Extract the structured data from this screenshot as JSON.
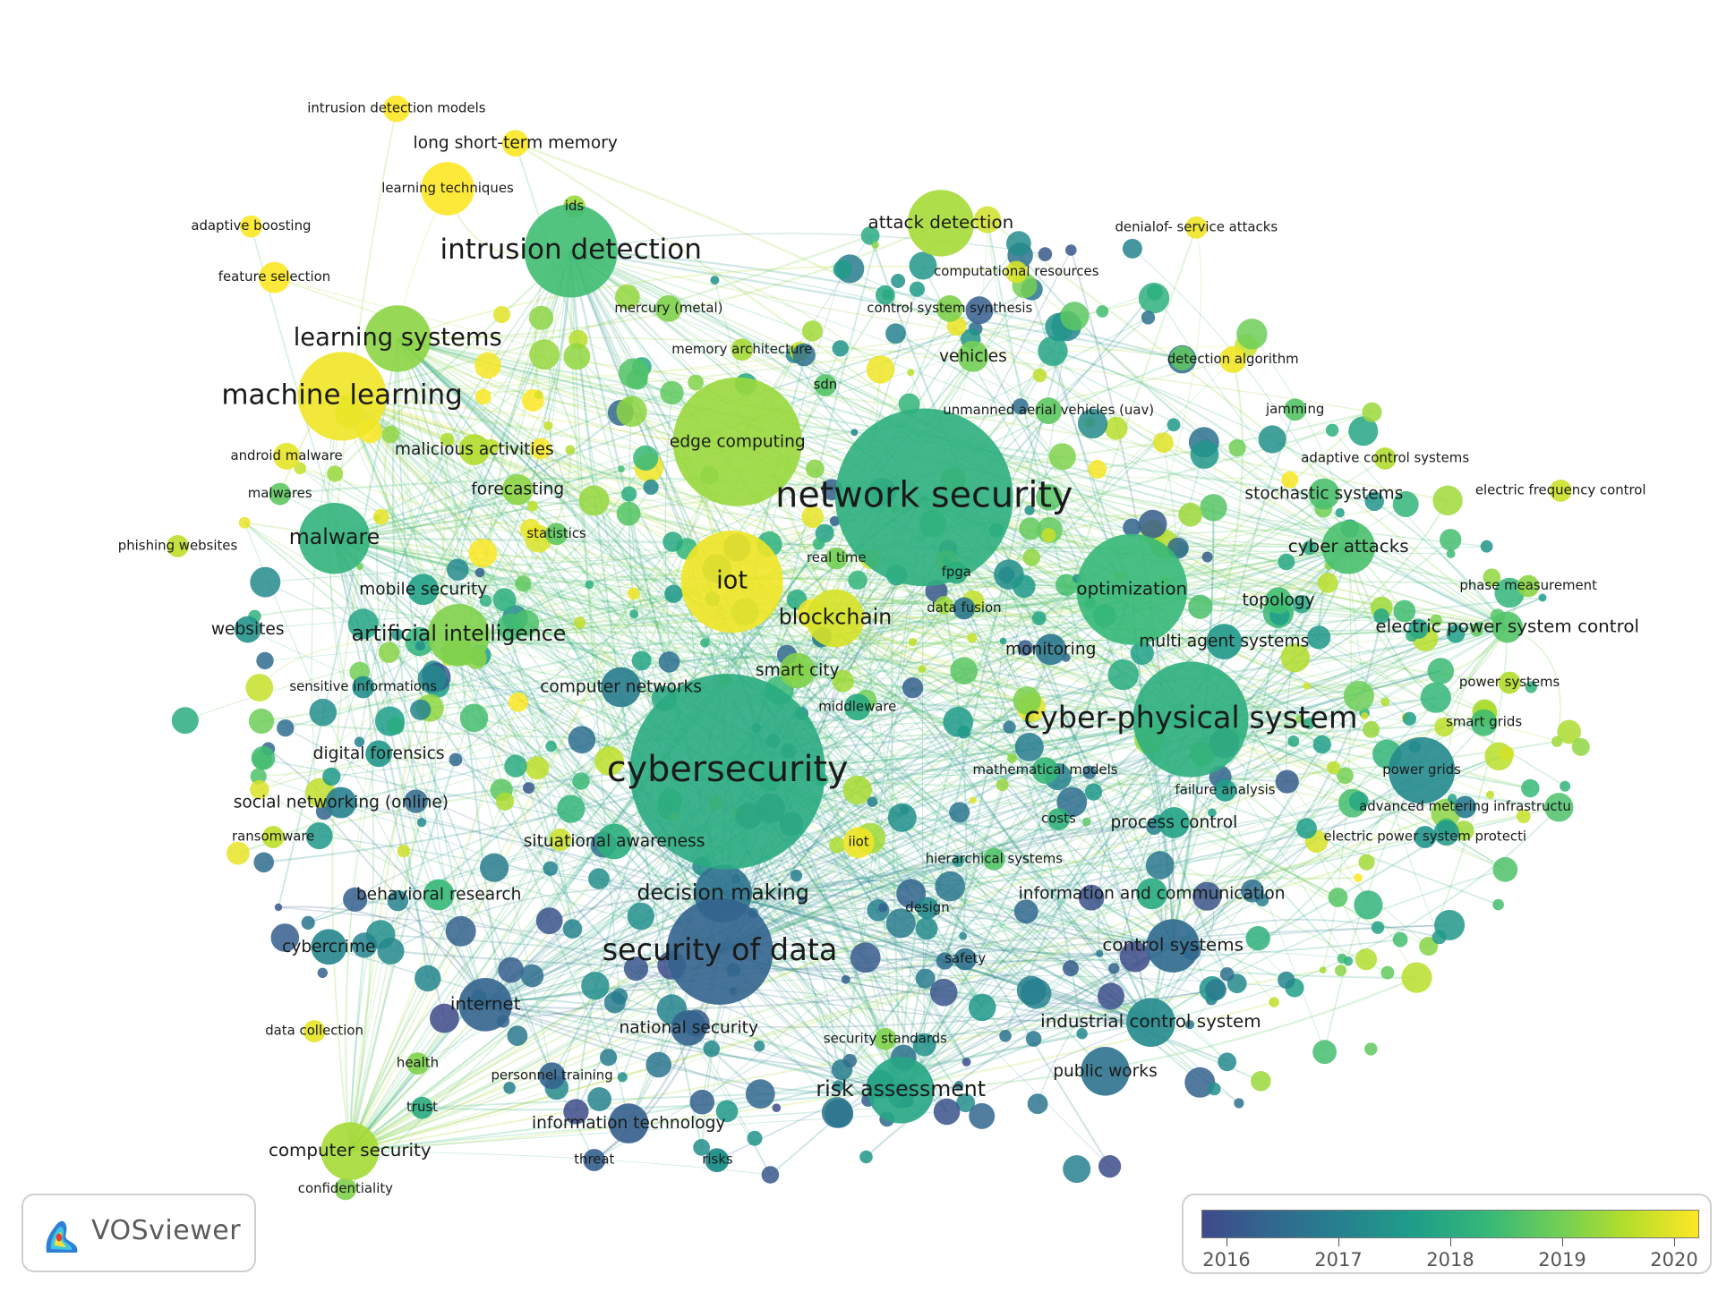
{
  "brand": {
    "name": "VOSviewer"
  },
  "overlay_legend": {
    "colors": [
      "#3e4a8a",
      "#31688e",
      "#26828e",
      "#1f9e89",
      "#35b779",
      "#6ece58",
      "#b5de2b",
      "#fde725"
    ],
    "years": [
      "2016",
      "2017",
      "2018",
      "2019",
      "2020"
    ]
  },
  "terms": [
    {
      "label": "network security",
      "year": 2018.1,
      "weight": 10
    },
    {
      "label": "cybersecurity",
      "year": 2018.0,
      "weight": 10
    },
    {
      "label": "cyber-physical system",
      "year": 2018.1,
      "weight": 8
    },
    {
      "label": "security of data",
      "year": 2016.5,
      "weight": 8
    },
    {
      "label": "intrusion detection",
      "year": 2018.4,
      "weight": 7
    },
    {
      "label": "machine learning",
      "year": 2019.9,
      "weight": 7
    },
    {
      "label": "learning systems",
      "year": 2019.1,
      "weight": 6
    },
    {
      "label": "iot",
      "year": 2019.9,
      "weight": 6
    },
    {
      "label": "artificial intelligence",
      "year": 2019.0,
      "weight": 5
    },
    {
      "label": "malware",
      "year": 2018.2,
      "weight": 5
    },
    {
      "label": "blockchain",
      "year": 2019.7,
      "weight": 5
    },
    {
      "label": "decision making",
      "year": 2016.8,
      "weight": 5
    },
    {
      "label": "risk assessment",
      "year": 2017.9,
      "weight": 5
    },
    {
      "label": "industrial control system",
      "year": 2017.3,
      "weight": 4
    },
    {
      "label": "control systems",
      "year": 2016.6,
      "weight": 4
    },
    {
      "label": "computer security",
      "year": 2019.3,
      "weight": 4
    },
    {
      "label": "internet",
      "year": 2016.5,
      "weight": 4
    },
    {
      "label": "cyber attacks",
      "year": 2018.5,
      "weight": 4
    },
    {
      "label": "optimization",
      "year": 2018.3,
      "weight": 4
    },
    {
      "label": "electric power system control",
      "year": 2018.6,
      "weight": 4
    },
    {
      "label": "attack detection",
      "year": 2019.3,
      "weight": 4
    },
    {
      "label": "smart city",
      "year": 2019.0,
      "weight": 3
    },
    {
      "label": "multi agent systems",
      "year": 2017.6,
      "weight": 3
    },
    {
      "label": "monitoring",
      "year": 2016.9,
      "weight": 3
    },
    {
      "label": "process control",
      "year": 2017.8,
      "weight": 3
    },
    {
      "label": "information and communication",
      "year": 2018.0,
      "weight": 3
    },
    {
      "label": "mobile security",
      "year": 2017.8,
      "weight": 3
    },
    {
      "label": "computer networks",
      "year": 2017.0,
      "weight": 3
    },
    {
      "label": "situational awareness",
      "year": 2018.1,
      "weight": 3
    },
    {
      "label": "behavioral research",
      "year": 2018.3,
      "weight": 3
    },
    {
      "label": "cybercrime",
      "year": 2017.2,
      "weight": 3
    },
    {
      "label": "national security",
      "year": 2016.5,
      "weight": 3
    },
    {
      "label": "information technology",
      "year": 2016.4,
      "weight": 3
    },
    {
      "label": "public works",
      "year": 2016.8,
      "weight": 3
    },
    {
      "label": "digital forensics",
      "year": 2017.6,
      "weight": 3
    },
    {
      "label": "social networking (online)",
      "year": 2017.1,
      "weight": 3
    },
    {
      "label": "stochastic systems",
      "year": 2018.5,
      "weight": 3
    },
    {
      "label": "topology",
      "year": 2018.4,
      "weight": 3
    },
    {
      "label": "vehicles",
      "year": 2018.9,
      "weight": 3
    },
    {
      "label": "forecasting",
      "year": 2019.1,
      "weight": 3
    },
    {
      "label": "malicious activities",
      "year": 2019.4,
      "weight": 3
    },
    {
      "label": "edge computing",
      "year": 2019.2,
      "weight": 3
    },
    {
      "label": "long short-term memory",
      "year": 2020.0,
      "weight": 3
    },
    {
      "label": "websites",
      "year": 2017.5,
      "weight": 3
    },
    {
      "label": "smart grids",
      "year": 2018.4,
      "weight": 2
    },
    {
      "label": "power grids",
      "year": 2017.3,
      "weight": 2
    },
    {
      "label": "mercury (metal)",
      "year": 2019.0,
      "weight": 2
    },
    {
      "label": "control system synthesis",
      "year": 2019.0,
      "weight": 2
    },
    {
      "label": "unmanned aerial vehicles (uav)",
      "year": 2018.7,
      "weight": 2
    },
    {
      "label": "denialof- service attacks",
      "year": 2019.9,
      "weight": 2
    },
    {
      "label": "jamming",
      "year": 2018.6,
      "weight": 2
    },
    {
      "label": "adaptive control systems",
      "year": 2019.4,
      "weight": 2
    },
    {
      "label": "electric frequency control",
      "year": 2019.6,
      "weight": 2
    },
    {
      "label": "phase measurement",
      "year": 2019.1,
      "weight": 2
    },
    {
      "label": "power systems",
      "year": 2019.4,
      "weight": 2
    },
    {
      "label": "advanced metering infrastructu",
      "year": 2017.0,
      "weight": 2
    },
    {
      "label": "electric power system protecti",
      "year": 2017.5,
      "weight": 2
    },
    {
      "label": "failure analysis",
      "year": 2017.7,
      "weight": 2
    },
    {
      "label": "costs",
      "year": 2018.2,
      "weight": 2
    },
    {
      "label": "mathematical models",
      "year": 2018.3,
      "weight": 2
    },
    {
      "label": "hierarchical systems",
      "year": 2018.6,
      "weight": 2
    },
    {
      "label": "design",
      "year": 2017.3,
      "weight": 2
    },
    {
      "label": "safety",
      "year": 2016.8,
      "weight": 2
    },
    {
      "label": "security standards",
      "year": 2019.0,
      "weight": 2
    },
    {
      "label": "iiot",
      "year": 2019.9,
      "weight": 2
    },
    {
      "label": "middleware",
      "year": 2018.0,
      "weight": 2
    },
    {
      "label": "data fusion",
      "year": 2016.9,
      "weight": 2
    },
    {
      "label": "fpga",
      "year": 2018.0,
      "weight": 2
    },
    {
      "label": "real time",
      "year": 2018.9,
      "weight": 2
    },
    {
      "label": "statistics",
      "year": 2018.7,
      "weight": 2
    },
    {
      "label": "sdn",
      "year": 2018.6,
      "weight": 2
    },
    {
      "label": "memory architecture",
      "year": 2019.3,
      "weight": 2
    },
    {
      "label": "computational resources",
      "year": 2019.7,
      "weight": 2
    },
    {
      "label": "detection algorithm",
      "year": 2019.9,
      "weight": 2
    },
    {
      "label": "ids",
      "year": 2019.2,
      "weight": 2
    },
    {
      "label": "learning techniques",
      "year": 2020.0,
      "weight": 2
    },
    {
      "label": "intrusion detection models",
      "year": 2020.0,
      "weight": 2
    },
    {
      "label": "adaptive boosting",
      "year": 2020.0,
      "weight": 2
    },
    {
      "label": "feature selection",
      "year": 2020.0,
      "weight": 2
    },
    {
      "label": "android malware",
      "year": 2019.8,
      "weight": 2
    },
    {
      "label": "malwares",
      "year": 2018.7,
      "weight": 2
    },
    {
      "label": "phishing websites",
      "year": 2019.5,
      "weight": 2
    },
    {
      "label": "sensitive informations",
      "year": 2017.4,
      "weight": 2
    },
    {
      "label": "ransomware",
      "year": 2019.5,
      "weight": 2
    },
    {
      "label": "data collection",
      "year": 2019.8,
      "weight": 2
    },
    {
      "label": "health",
      "year": 2019.0,
      "weight": 2
    },
    {
      "label": "trust",
      "year": 2018.0,
      "weight": 2
    },
    {
      "label": "confidentiality",
      "year": 2019.0,
      "weight": 2
    },
    {
      "label": "personnel training",
      "year": 2016.5,
      "weight": 2
    },
    {
      "label": "threat",
      "year": 2016.4,
      "weight": 2
    },
    {
      "label": "risks",
      "year": 2017.5,
      "weight": 2
    }
  ]
}
